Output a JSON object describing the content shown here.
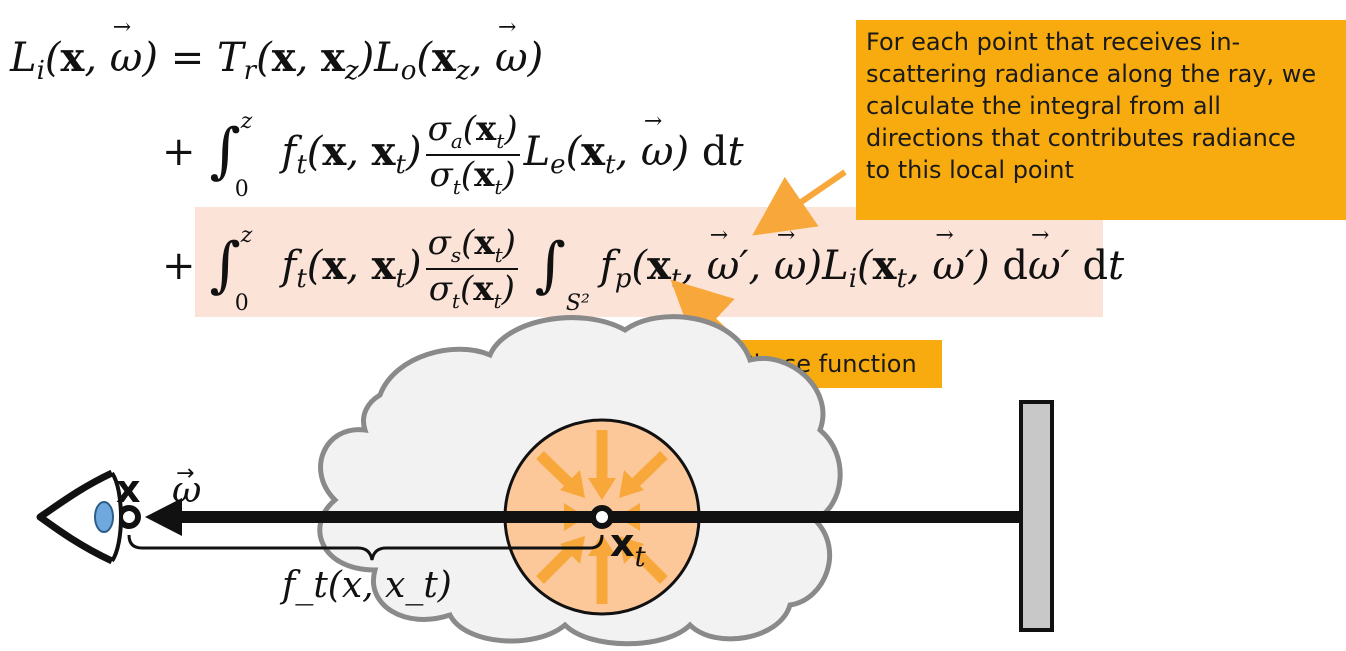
{
  "equation": {
    "lhs": "L_i(x, ω) = T_r(x, x_z) L_o(x_z, ω)",
    "term2": "+ ∫_0^z f_t(x, x_t) σ_a(x_t)/σ_t(x_t) L_e(x_t, ω) dt",
    "term3": "+ ∫_0^z f_t(x, x_t) σ_s(x_t)/σ_t(x_t) ∫_S² f_p(x_t, ω', ω) L_i(x_t, ω') dω' dt"
  },
  "callouts": {
    "inscatter": [
      "For each point that receives in-",
      "scattering radiance along the ray, we",
      "calculate the integral from all",
      "directions that contributes radiance",
      "to this local point"
    ],
    "phase": "Phase function"
  },
  "diagram": {
    "label_x": "x",
    "label_omega": "ω",
    "label_xt": "x",
    "label_xt_sub": "t",
    "label_ft": "f_t(x, x_t)"
  },
  "colors": {
    "callout": "#f8ab0e",
    "highlight": "#fce3d8",
    "sphere": "#fcc89a",
    "arrows": "#f8a73a",
    "cloud": "#f2f2f2",
    "cloud_stroke": "#8a8a8a",
    "wall": "#c8c8c8",
    "eye_iris": "#6fa8dc"
  },
  "icons": [
    "eye-icon",
    "cloud-shape",
    "wall-block",
    "scatter-sphere"
  ]
}
